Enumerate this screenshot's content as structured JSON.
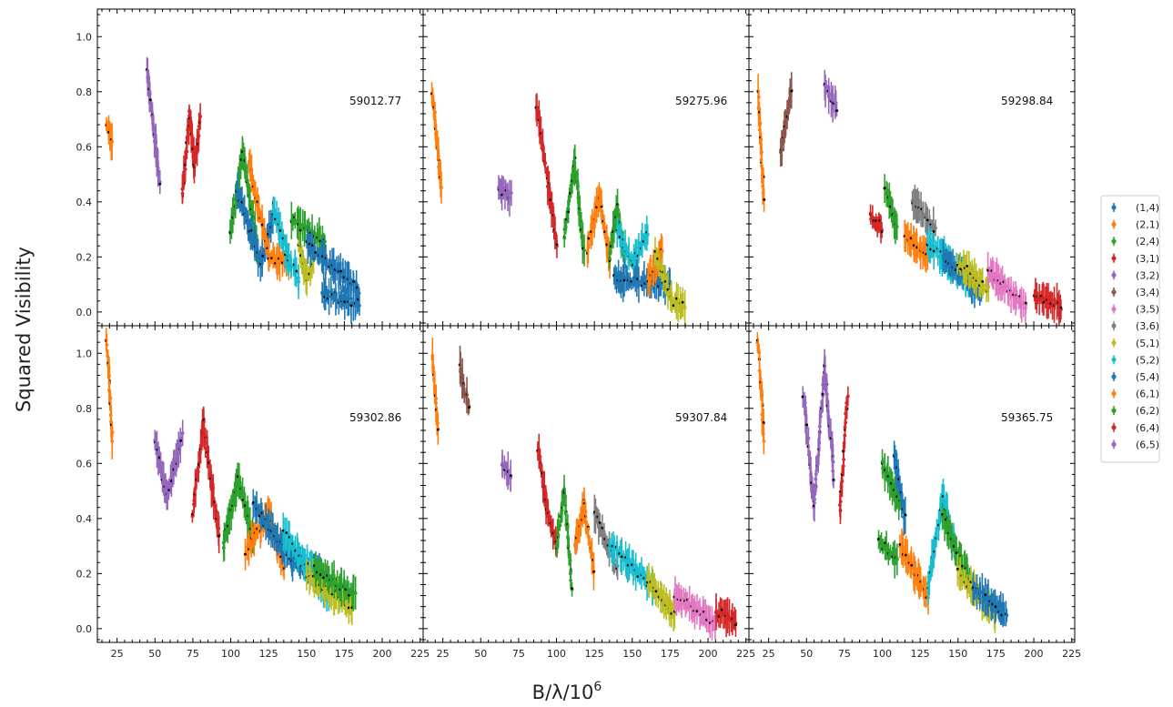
{
  "chart_data": {
    "type": "scatter",
    "ylabel": "Squared Visibility",
    "xlabel": "B/λ/10",
    "xlabel_superscript": "6",
    "xlim": [
      12,
      227
    ],
    "ylim": [
      -0.05,
      1.1
    ],
    "xticks": [
      25,
      50,
      75,
      100,
      125,
      150,
      175,
      200,
      225
    ],
    "yticks": [
      0.0,
      0.2,
      0.4,
      0.6,
      0.8,
      1.0
    ],
    "ytick_labels": [
      "0.0",
      "0.2",
      "0.4",
      "0.6",
      "0.8",
      "1.0"
    ],
    "grid": false,
    "legend_placement": "right",
    "legend": [
      {
        "label": "(1,4)",
        "color": "#1f77b4"
      },
      {
        "label": "(2,1)",
        "color": "#ff7f0e"
      },
      {
        "label": "(2,4)",
        "color": "#2ca02c"
      },
      {
        "label": "(3,1)",
        "color": "#d62728"
      },
      {
        "label": "(3,2)",
        "color": "#9467bd"
      },
      {
        "label": "(3,4)",
        "color": "#8c564b"
      },
      {
        "label": "(3,5)",
        "color": "#e377c2"
      },
      {
        "label": "(3,6)",
        "color": "#7f7f7f"
      },
      {
        "label": "(5,1)",
        "color": "#bcbd22"
      },
      {
        "label": "(5,2)",
        "color": "#17becf"
      },
      {
        "label": "(5,4)",
        "color": "#1f77b4"
      },
      {
        "label": "(6,1)",
        "color": "#ff7f0e"
      },
      {
        "label": "(6,2)",
        "color": "#2ca02c"
      },
      {
        "label": "(6,4)",
        "color": "#d62728"
      },
      {
        "label": "(6,5)",
        "color": "#9467bd"
      }
    ],
    "panels": [
      {
        "label": "59012.77",
        "segments": [
          {
            "c": 1,
            "x": [
              18,
              22
            ],
            "y": [
              0.68,
              0.62
            ]
          },
          {
            "c": 4,
            "x": [
              45,
              53
            ],
            "y": [
              0.88,
              0.47
            ]
          },
          {
            "c": 3,
            "x": [
              68,
              73,
              76,
              80
            ],
            "y": [
              0.42,
              0.72,
              0.52,
              0.7
            ]
          },
          {
            "c": 2,
            "x": [
              100,
              108,
              118
            ],
            "y": [
              0.3,
              0.58,
              0.22
            ]
          },
          {
            "c": 10,
            "x": [
              104,
              120,
              128
            ],
            "y": [
              0.45,
              0.18,
              0.35
            ]
          },
          {
            "c": 1,
            "x": [
              112,
              125,
              138
            ],
            "y": [
              0.55,
              0.2,
              0.18
            ]
          },
          {
            "c": 9,
            "x": [
              128,
              138,
              145
            ],
            "y": [
              0.38,
              0.2,
              0.12
            ]
          },
          {
            "c": 8,
            "x": [
              145,
              150,
              155
            ],
            "y": [
              0.25,
              0.12,
              0.2
            ]
          },
          {
            "c": 12,
            "x": [
              140,
              162
            ],
            "y": [
              0.34,
              0.25
            ]
          },
          {
            "c": 0,
            "x": [
              150,
              185
            ],
            "y": [
              0.25,
              0.08
            ]
          },
          {
            "c": 10,
            "x": [
              160,
              185
            ],
            "y": [
              0.07,
              0.03
            ]
          }
        ]
      },
      {
        "label": "59275.96",
        "segments": [
          {
            "c": 1,
            "x": [
              18,
              24
            ],
            "y": [
              0.8,
              0.45
            ]
          },
          {
            "c": 4,
            "x": [
              62,
              70
            ],
            "y": [
              0.45,
              0.42
            ]
          },
          {
            "c": 3,
            "x": [
              87,
              95,
              100
            ],
            "y": [
              0.75,
              0.45,
              0.25
            ]
          },
          {
            "c": 2,
            "x": [
              105,
              112,
              118
            ],
            "y": [
              0.28,
              0.55,
              0.22
            ]
          },
          {
            "c": 1,
            "x": [
              120,
              128,
              135
            ],
            "y": [
              0.22,
              0.42,
              0.2
            ]
          },
          {
            "c": 2,
            "x": [
              135,
              140,
              145
            ],
            "y": [
              0.2,
              0.38,
              0.2
            ]
          },
          {
            "c": 9,
            "x": [
              140,
              150,
              160
            ],
            "y": [
              0.3,
              0.18,
              0.28
            ]
          },
          {
            "c": 10,
            "x": [
              138,
              175
            ],
            "y": [
              0.12,
              0.1
            ]
          },
          {
            "c": 1,
            "x": [
              160,
              170
            ],
            "y": [
              0.12,
              0.22
            ]
          },
          {
            "c": 8,
            "x": [
              165,
              175,
              185
            ],
            "y": [
              0.22,
              0.05,
              0.02
            ]
          }
        ]
      },
      {
        "label": "59298.84",
        "segments": [
          {
            "c": 1,
            "x": [
              18,
              22
            ],
            "y": [
              0.8,
              0.4
            ]
          },
          {
            "c": 5,
            "x": [
              33,
              40
            ],
            "y": [
              0.58,
              0.8
            ]
          },
          {
            "c": 4,
            "x": [
              62,
              70
            ],
            "y": [
              0.82,
              0.74
            ]
          },
          {
            "c": 3,
            "x": [
              92,
              100
            ],
            "y": [
              0.35,
              0.3
            ]
          },
          {
            "c": 2,
            "x": [
              102,
              110
            ],
            "y": [
              0.45,
              0.3
            ]
          },
          {
            "c": 7,
            "x": [
              120,
              135
            ],
            "y": [
              0.4,
              0.3
            ]
          },
          {
            "c": 1,
            "x": [
              115,
              130
            ],
            "y": [
              0.28,
              0.2
            ]
          },
          {
            "c": 9,
            "x": [
              130,
              160
            ],
            "y": [
              0.25,
              0.1
            ]
          },
          {
            "c": 10,
            "x": [
              140,
              165
            ],
            "y": [
              0.2,
              0.07
            ]
          },
          {
            "c": 8,
            "x": [
              150,
              170
            ],
            "y": [
              0.18,
              0.08
            ]
          },
          {
            "c": 6,
            "x": [
              170,
              195
            ],
            "y": [
              0.15,
              0.02
            ]
          },
          {
            "c": 13,
            "x": [
              200,
              218
            ],
            "y": [
              0.06,
              0.02
            ]
          }
        ]
      },
      {
        "label": "59302.86",
        "segments": [
          {
            "c": 1,
            "x": [
              18,
              22
            ],
            "y": [
              1.05,
              0.68
            ]
          },
          {
            "c": 4,
            "x": [
              50,
              58,
              68
            ],
            "y": [
              0.68,
              0.48,
              0.7
            ]
          },
          {
            "c": 3,
            "x": [
              75,
              82,
              88,
              92
            ],
            "y": [
              0.42,
              0.75,
              0.5,
              0.35
            ]
          },
          {
            "c": 2,
            "x": [
              95,
              105,
              115
            ],
            "y": [
              0.3,
              0.55,
              0.32
            ]
          },
          {
            "c": 1,
            "x": [
              110,
              125,
              135
            ],
            "y": [
              0.28,
              0.42,
              0.22
            ]
          },
          {
            "c": 10,
            "x": [
              115,
              140,
              160
            ],
            "y": [
              0.45,
              0.25,
              0.2
            ]
          },
          {
            "c": 9,
            "x": [
              135,
              165
            ],
            "y": [
              0.35,
              0.12
            ]
          },
          {
            "c": 8,
            "x": [
              150,
              180
            ],
            "y": [
              0.2,
              0.08
            ]
          },
          {
            "c": 12,
            "x": [
              155,
              182
            ],
            "y": [
              0.22,
              0.12
            ]
          }
        ]
      },
      {
        "label": "59307.84",
        "segments": [
          {
            "c": 1,
            "x": [
              18,
              22
            ],
            "y": [
              1.0,
              0.72
            ]
          },
          {
            "c": 5,
            "x": [
              36,
              42
            ],
            "y": [
              0.95,
              0.8
            ]
          },
          {
            "c": 4,
            "x": [
              64,
              70
            ],
            "y": [
              0.6,
              0.55
            ]
          },
          {
            "c": 3,
            "x": [
              88,
              93,
              100
            ],
            "y": [
              0.65,
              0.45,
              0.3
            ]
          },
          {
            "c": 2,
            "x": [
              100,
              105,
              110
            ],
            "y": [
              0.3,
              0.5,
              0.15
            ]
          },
          {
            "c": 1,
            "x": [
              112,
              118,
              125
            ],
            "y": [
              0.3,
              0.45,
              0.2
            ]
          },
          {
            "c": 7,
            "x": [
              125,
              140
            ],
            "y": [
              0.42,
              0.22
            ]
          },
          {
            "c": 9,
            "x": [
              135,
              165
            ],
            "y": [
              0.3,
              0.15
            ]
          },
          {
            "c": 8,
            "x": [
              160,
              178
            ],
            "y": [
              0.18,
              0.05
            ]
          },
          {
            "c": 6,
            "x": [
              178,
              205
            ],
            "y": [
              0.12,
              0.02
            ]
          },
          {
            "c": 13,
            "x": [
              205,
              218
            ],
            "y": [
              0.06,
              0.03
            ]
          }
        ]
      },
      {
        "label": "59365.75",
        "segments": [
          {
            "c": 1,
            "x": [
              18,
              22
            ],
            "y": [
              1.05,
              0.68
            ]
          },
          {
            "c": 4,
            "x": [
              48,
              55,
              62,
              68
            ],
            "y": [
              0.85,
              0.45,
              0.95,
              0.55
            ]
          },
          {
            "c": 3,
            "x": [
              72,
              77
            ],
            "y": [
              0.42,
              0.85
            ]
          },
          {
            "c": 2,
            "x": [
              100,
              112
            ],
            "y": [
              0.6,
              0.45
            ]
          },
          {
            "c": 10,
            "x": [
              108,
              115
            ],
            "y": [
              0.62,
              0.4
            ]
          },
          {
            "c": 2,
            "x": [
              98,
              110
            ],
            "y": [
              0.32,
              0.25
            ]
          },
          {
            "c": 1,
            "x": [
              112,
              130
            ],
            "y": [
              0.3,
              0.12
            ]
          },
          {
            "c": 9,
            "x": [
              130,
              140,
              148
            ],
            "y": [
              0.15,
              0.48,
              0.3
            ]
          },
          {
            "c": 12,
            "x": [
              140,
              160
            ],
            "y": [
              0.4,
              0.15
            ]
          },
          {
            "c": 8,
            "x": [
              150,
              175
            ],
            "y": [
              0.2,
              0.05
            ]
          },
          {
            "c": 0,
            "x": [
              160,
              182
            ],
            "y": [
              0.15,
              0.05
            ]
          }
        ]
      }
    ]
  }
}
